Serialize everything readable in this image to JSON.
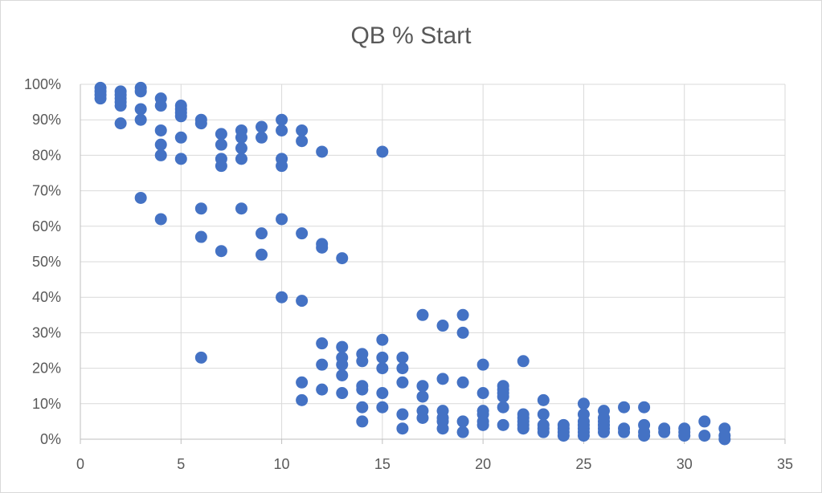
{
  "chart_data": {
    "type": "scatter",
    "title": "QB % Start",
    "xlabel": "",
    "ylabel": "",
    "xlim": [
      0,
      35
    ],
    "ylim": [
      0,
      1
    ],
    "x_ticks": [
      "0",
      "5",
      "10",
      "15",
      "20",
      "25",
      "30",
      "35"
    ],
    "y_ticks": [
      "0%",
      "10%",
      "20%",
      "30%",
      "40%",
      "50%",
      "60%",
      "70%",
      "80%",
      "90%",
      "100%"
    ],
    "grid": true,
    "legend": "none",
    "point_color": "#4472c4",
    "series": [
      {
        "name": "QB % Start",
        "points": [
          [
            1,
            0.99
          ],
          [
            1,
            0.98
          ],
          [
            1,
            0.97
          ],
          [
            1,
            0.96
          ],
          [
            2,
            0.98
          ],
          [
            2,
            0.97
          ],
          [
            2,
            0.96
          ],
          [
            2,
            0.95
          ],
          [
            2,
            0.94
          ],
          [
            2,
            0.89
          ],
          [
            3,
            0.99
          ],
          [
            3,
            0.98
          ],
          [
            3,
            0.93
          ],
          [
            3,
            0.9
          ],
          [
            3,
            0.68
          ],
          [
            4,
            0.96
          ],
          [
            4,
            0.94
          ],
          [
            4,
            0.87
          ],
          [
            4,
            0.83
          ],
          [
            4,
            0.8
          ],
          [
            4,
            0.62
          ],
          [
            5,
            0.94
          ],
          [
            5,
            0.93
          ],
          [
            5,
            0.92
          ],
          [
            5,
            0.91
          ],
          [
            5,
            0.85
          ],
          [
            5,
            0.79
          ],
          [
            6,
            0.9
          ],
          [
            6,
            0.89
          ],
          [
            6,
            0.65
          ],
          [
            6,
            0.57
          ],
          [
            6,
            0.23
          ],
          [
            7,
            0.86
          ],
          [
            7,
            0.83
          ],
          [
            7,
            0.79
          ],
          [
            7,
            0.77
          ],
          [
            7,
            0.53
          ],
          [
            8,
            0.87
          ],
          [
            8,
            0.85
          ],
          [
            8,
            0.82
          ],
          [
            8,
            0.79
          ],
          [
            8,
            0.65
          ],
          [
            9,
            0.88
          ],
          [
            9,
            0.85
          ],
          [
            9,
            0.58
          ],
          [
            9,
            0.52
          ],
          [
            10,
            0.9
          ],
          [
            10,
            0.87
          ],
          [
            10,
            0.79
          ],
          [
            10,
            0.77
          ],
          [
            10,
            0.62
          ],
          [
            10,
            0.4
          ],
          [
            11,
            0.87
          ],
          [
            11,
            0.84
          ],
          [
            11,
            0.58
          ],
          [
            11,
            0.39
          ],
          [
            11,
            0.16
          ],
          [
            11,
            0.11
          ],
          [
            12,
            0.81
          ],
          [
            12,
            0.55
          ],
          [
            12,
            0.54
          ],
          [
            12,
            0.27
          ],
          [
            12,
            0.21
          ],
          [
            12,
            0.14
          ],
          [
            13,
            0.51
          ],
          [
            13,
            0.26
          ],
          [
            13,
            0.23
          ],
          [
            13,
            0.21
          ],
          [
            13,
            0.18
          ],
          [
            13,
            0.13
          ],
          [
            14,
            0.24
          ],
          [
            14,
            0.22
          ],
          [
            14,
            0.15
          ],
          [
            14,
            0.14
          ],
          [
            14,
            0.09
          ],
          [
            14,
            0.05
          ],
          [
            15,
            0.81
          ],
          [
            15,
            0.28
          ],
          [
            15,
            0.23
          ],
          [
            15,
            0.2
          ],
          [
            15,
            0.13
          ],
          [
            15,
            0.09
          ],
          [
            16,
            0.23
          ],
          [
            16,
            0.2
          ],
          [
            16,
            0.16
          ],
          [
            16,
            0.07
          ],
          [
            16,
            0.03
          ],
          [
            17,
            0.35
          ],
          [
            17,
            0.15
          ],
          [
            17,
            0.12
          ],
          [
            17,
            0.08
          ],
          [
            17,
            0.06
          ],
          [
            18,
            0.32
          ],
          [
            18,
            0.17
          ],
          [
            18,
            0.08
          ],
          [
            18,
            0.06
          ],
          [
            18,
            0.05
          ],
          [
            18,
            0.03
          ],
          [
            19,
            0.35
          ],
          [
            19,
            0.3
          ],
          [
            19,
            0.16
          ],
          [
            19,
            0.05
          ],
          [
            19,
            0.02
          ],
          [
            20,
            0.21
          ],
          [
            20,
            0.13
          ],
          [
            20,
            0.08
          ],
          [
            20,
            0.07
          ],
          [
            20,
            0.05
          ],
          [
            20,
            0.04
          ],
          [
            21,
            0.15
          ],
          [
            21,
            0.14
          ],
          [
            21,
            0.13
          ],
          [
            21,
            0.12
          ],
          [
            21,
            0.09
          ],
          [
            21,
            0.04
          ],
          [
            22,
            0.22
          ],
          [
            22,
            0.07
          ],
          [
            22,
            0.06
          ],
          [
            22,
            0.05
          ],
          [
            22,
            0.04
          ],
          [
            22,
            0.03
          ],
          [
            23,
            0.11
          ],
          [
            23,
            0.07
          ],
          [
            23,
            0.04
          ],
          [
            23,
            0.03
          ],
          [
            23,
            0.02
          ],
          [
            24,
            0.04
          ],
          [
            24,
            0.03
          ],
          [
            24,
            0.02
          ],
          [
            24,
            0.01
          ],
          [
            25,
            0.1
          ],
          [
            25,
            0.07
          ],
          [
            25,
            0.05
          ],
          [
            25,
            0.04
          ],
          [
            25,
            0.03
          ],
          [
            25,
            0.02
          ],
          [
            25,
            0.01
          ],
          [
            26,
            0.08
          ],
          [
            26,
            0.06
          ],
          [
            26,
            0.05
          ],
          [
            26,
            0.04
          ],
          [
            26,
            0.03
          ],
          [
            26,
            0.02
          ],
          [
            27,
            0.09
          ],
          [
            27,
            0.03
          ],
          [
            27,
            0.02
          ],
          [
            28,
            0.09
          ],
          [
            28,
            0.04
          ],
          [
            28,
            0.02
          ],
          [
            28,
            0.01
          ],
          [
            29,
            0.03
          ],
          [
            29,
            0.02
          ],
          [
            30,
            0.03
          ],
          [
            30,
            0.02
          ],
          [
            30,
            0.01
          ],
          [
            31,
            0.05
          ],
          [
            31,
            0.01
          ],
          [
            32,
            0.03
          ],
          [
            32,
            0.01
          ],
          [
            32,
            0.0
          ]
        ]
      }
    ]
  }
}
